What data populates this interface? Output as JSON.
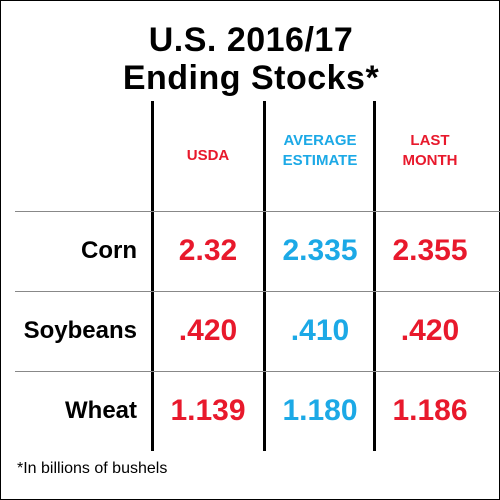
{
  "title_line1": "U.S. 2016/17",
  "title_line2": "Ending Stocks*",
  "colors": {
    "red": "#e8192c",
    "blue": "#1ca9e6"
  },
  "chart_data": {
    "type": "table",
    "columns": [
      {
        "line1": "USDA",
        "line2": "",
        "color": "red"
      },
      {
        "line1": "AVERAGE",
        "line2": "ESTIMATE",
        "color": "blue"
      },
      {
        "line1": "LAST",
        "line2": "MONTH",
        "color": "red"
      }
    ],
    "rows": [
      {
        "label": "Corn",
        "values": [
          "2.32",
          "2.335",
          "2.355"
        ]
      },
      {
        "label": "Soybeans",
        "values": [
          ".420",
          ".410",
          ".420"
        ]
      },
      {
        "label": "Wheat",
        "values": [
          "1.139",
          "1.180",
          "1.186"
        ]
      }
    ],
    "footnote": "*In billions of bushels"
  }
}
